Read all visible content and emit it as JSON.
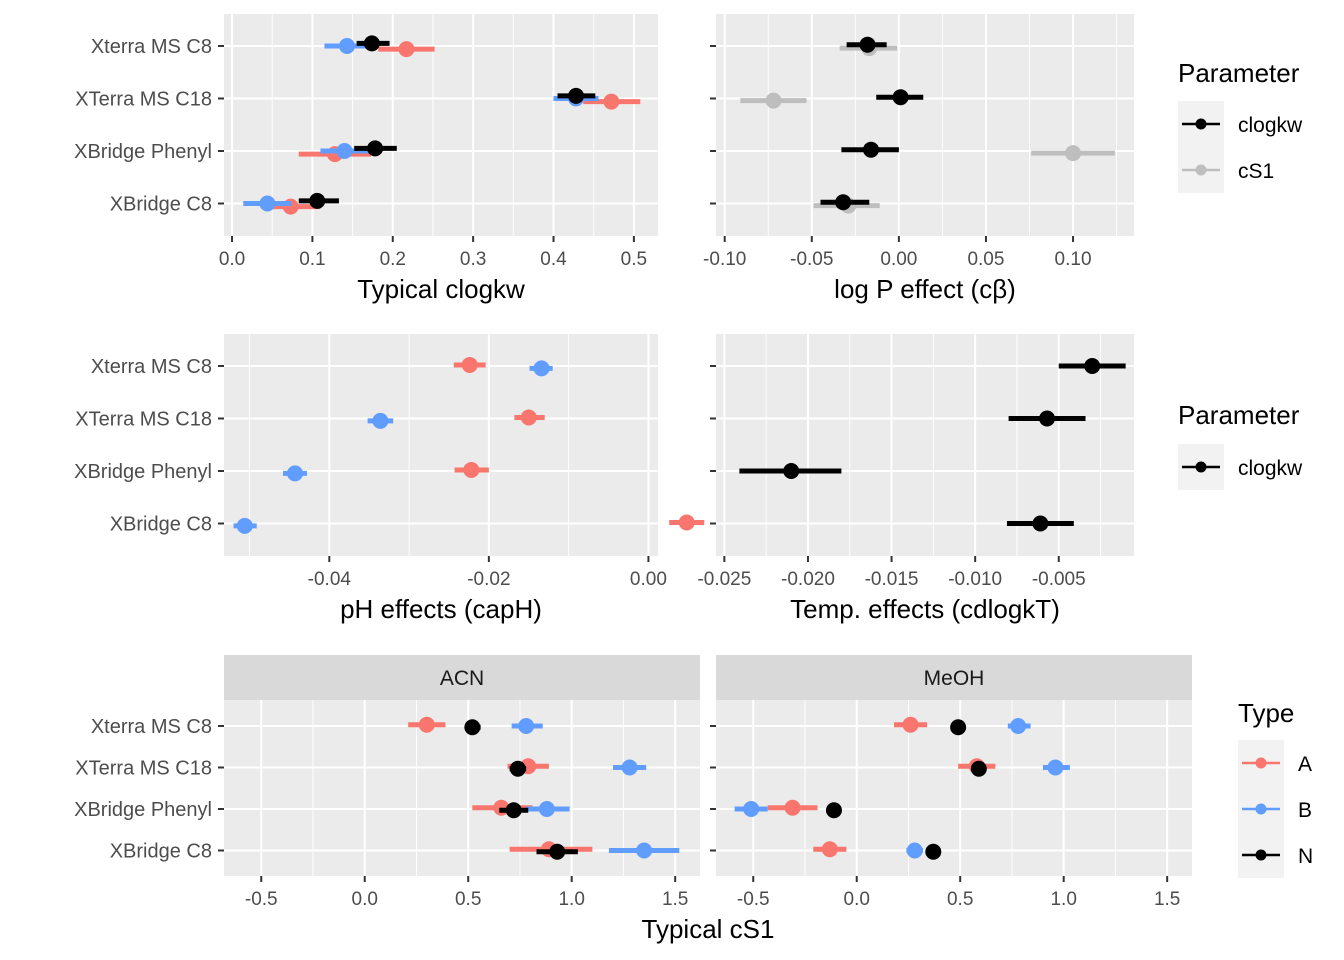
{
  "chart_data": [
    {
      "id": "p1",
      "type": "scatter",
      "subtype": "pointrange",
      "categories": [
        "Xterra MS C8",
        "XTerra MS C18",
        "XBridge Phenyl",
        "XBridge C8"
      ],
      "xlabel": "Typical clogkw",
      "xlim": [
        -0.01,
        0.53
      ],
      "xticks": [
        0.0,
        0.1,
        0.2,
        0.3,
        0.4,
        0.5
      ],
      "xtick_labels": [
        "0.0",
        "0.1",
        "0.2",
        "0.3",
        "0.4",
        "0.5"
      ],
      "series": [
        {
          "name": "A",
          "color": "#F8766D",
          "offset": 0.12,
          "points": [
            {
              "category": "Xterra MS C8",
              "x": 0.217,
              "lo": 0.182,
              "hi": 0.252
            },
            {
              "category": "XTerra MS C18",
              "x": 0.472,
              "lo": 0.437,
              "hi": 0.508
            },
            {
              "category": "XBridge Phenyl",
              "x": 0.128,
              "lo": 0.083,
              "hi": 0.173
            },
            {
              "category": "XBridge C8",
              "x": 0.073,
              "lo": 0.038,
              "hi": 0.11
            }
          ]
        },
        {
          "name": "B",
          "color": "#619CFF",
          "offset": 0.0,
          "points": [
            {
              "category": "Xterra MS C8",
              "x": 0.143,
              "lo": 0.115,
              "hi": 0.172
            },
            {
              "category": "XTerra MS C18",
              "x": 0.428,
              "lo": 0.4,
              "hi": 0.456
            },
            {
              "category": "XBridge Phenyl",
              "x": 0.14,
              "lo": 0.11,
              "hi": 0.17
            },
            {
              "category": "XBridge C8",
              "x": 0.044,
              "lo": 0.014,
              "hi": 0.074
            }
          ]
        },
        {
          "name": "N",
          "color": "#000000",
          "offset": -0.1,
          "points": [
            {
              "category": "Xterra MS C8",
              "x": 0.174,
              "lo": 0.155,
              "hi": 0.196
            },
            {
              "category": "XTerra MS C18",
              "x": 0.428,
              "lo": 0.405,
              "hi": 0.452
            },
            {
              "category": "XBridge Phenyl",
              "x": 0.178,
              "lo": 0.152,
              "hi": 0.205
            },
            {
              "category": "XBridge C8",
              "x": 0.106,
              "lo": 0.083,
              "hi": 0.133
            }
          ]
        }
      ]
    },
    {
      "id": "p2",
      "type": "scatter",
      "subtype": "pointrange",
      "categories": [
        "Xterra MS C8",
        "XTerra MS C18",
        "XBridge Phenyl",
        "XBridge C8"
      ],
      "xlabel": "log P effect (cβ)",
      "xlim": [
        -0.105,
        0.135
      ],
      "xticks": [
        -0.1,
        -0.05,
        0.0,
        0.05,
        0.1
      ],
      "xtick_labels": [
        "-0.10",
        "-0.05",
        "0.00",
        "0.05",
        "0.10"
      ],
      "series": [
        {
          "name": "cS1",
          "color": "#BEBEBE",
          "offset": 0.08,
          "points": [
            {
              "category": "Xterra MS C8",
              "x": -0.017,
              "lo": -0.034,
              "hi": -0.001
            },
            {
              "category": "XTerra MS C18",
              "x": -0.072,
              "lo": -0.091,
              "hi": -0.053
            },
            {
              "category": "XBridge Phenyl",
              "x": 0.1,
              "lo": 0.076,
              "hi": 0.124
            },
            {
              "category": "XBridge C8",
              "x": -0.029,
              "lo": -0.049,
              "hi": -0.011
            }
          ]
        },
        {
          "name": "clogkw",
          "color": "#000000",
          "offset": -0.05,
          "points": [
            {
              "category": "Xterra MS C8",
              "x": -0.018,
              "lo": -0.03,
              "hi": -0.007
            },
            {
              "category": "XTerra MS C18",
              "x": 0.001,
              "lo": -0.013,
              "hi": 0.014
            },
            {
              "category": "XBridge Phenyl",
              "x": -0.016,
              "lo": -0.033,
              "hi": 0.0
            },
            {
              "category": "XBridge C8",
              "x": -0.032,
              "lo": -0.045,
              "hi": -0.017
            }
          ]
        }
      ]
    },
    {
      "id": "p3",
      "type": "scatter",
      "subtype": "pointrange",
      "categories": [
        "Xterra MS C8",
        "XTerra MS C18",
        "XBridge Phenyl",
        "XBridge C8"
      ],
      "xlabel": "pH effects (capH)",
      "xlim": [
        -0.0532,
        0.0012
      ],
      "xticks": [
        -0.04,
        -0.02,
        0.0
      ],
      "xtick_labels": [
        "-0.04",
        "-0.02",
        "0.00"
      ],
      "series": [
        {
          "name": "A",
          "color": "#F8766D",
          "offset": -0.04,
          "points": [
            {
              "category": "Xterra MS C8",
              "x": -0.0224,
              "lo": -0.0244,
              "hi": -0.0204
            },
            {
              "category": "XTerra MS C18",
              "x": -0.015,
              "lo": -0.0168,
              "hi": -0.013
            },
            {
              "category": "XBridge Phenyl",
              "x": -0.0222,
              "lo": -0.0243,
              "hi": -0.02
            },
            {
              "category": "XBridge C8",
              "x": 0.0048,
              "lo": 0.0026,
              "hi": 0.007
            }
          ]
        },
        {
          "name": "B",
          "color": "#619CFF",
          "offset": 0.09,
          "points": [
            {
              "category": "Xterra MS C8",
              "x": -0.0134,
              "lo": -0.0149,
              "hi": -0.012
            },
            {
              "category": "XTerra MS C18",
              "x": -0.0336,
              "lo": -0.0352,
              "hi": -0.032
            },
            {
              "category": "XBridge Phenyl",
              "x": -0.0443,
              "lo": -0.0458,
              "hi": -0.0428
            },
            {
              "category": "XBridge C8",
              "x": -0.0506,
              "lo": -0.052,
              "hi": -0.0491
            }
          ]
        }
      ]
    },
    {
      "id": "p4",
      "type": "scatter",
      "subtype": "pointrange",
      "categories": [
        "Xterra MS C8",
        "XTerra MS C18",
        "XBridge Phenyl",
        "XBridge C8"
      ],
      "xlabel": "Temp. effects (cdlogkT)",
      "xlim": [
        -0.0255,
        -0.0005
      ],
      "xticks": [
        -0.025,
        -0.02,
        -0.015,
        -0.01,
        -0.005
      ],
      "xtick_labels": [
        "-0.025",
        "-0.020",
        "-0.015",
        "-0.010",
        "-0.005"
      ],
      "series": [
        {
          "name": "clogkw",
          "color": "#000000",
          "offset": 0.0,
          "points": [
            {
              "category": "Xterra MS C8",
              "x": -0.003,
              "lo": -0.005,
              "hi": -0.001
            },
            {
              "category": "XTerra MS C18",
              "x": -0.0057,
              "lo": -0.008,
              "hi": -0.0034
            },
            {
              "category": "XBridge Phenyl",
              "x": -0.021,
              "lo": -0.0241,
              "hi": -0.018
            },
            {
              "category": "XBridge C8",
              "x": -0.0061,
              "lo": -0.0081,
              "hi": -0.0041
            }
          ]
        }
      ]
    },
    {
      "id": "p5",
      "type": "scatter",
      "subtype": "pointrange",
      "facets": [
        "ACN",
        "MeOH"
      ],
      "categories": [
        "Xterra MS C8",
        "XTerra MS C18",
        "XBridge Phenyl",
        "XBridge C8"
      ],
      "xlabel": "Typical cS1",
      "xlim": [
        -0.68,
        1.62
      ],
      "xticks": [
        -0.5,
        0.0,
        0.5,
        1.0,
        1.5
      ],
      "xtick_labels": [
        "-0.5",
        "0.0",
        "0.5",
        "1.0",
        "1.5"
      ],
      "series": [
        {
          "name": "A",
          "color": "#F8766D",
          "offset": -0.06,
          "points": [
            {
              "facet": "ACN",
              "category": "Xterra MS C8",
              "x": 0.3,
              "lo": 0.21,
              "hi": 0.39
            },
            {
              "facet": "ACN",
              "category": "XTerra MS C18",
              "x": 0.79,
              "lo": 0.69,
              "hi": 0.89
            },
            {
              "facet": "ACN",
              "category": "XBridge Phenyl",
              "x": 0.66,
              "lo": 0.52,
              "hi": 0.81
            },
            {
              "facet": "ACN",
              "category": "XBridge C8",
              "x": 0.89,
              "lo": 0.7,
              "hi": 1.1
            },
            {
              "facet": "MeOH",
              "category": "Xterra MS C8",
              "x": 0.26,
              "lo": 0.18,
              "hi": 0.34
            },
            {
              "facet": "MeOH",
              "category": "XTerra MS C18",
              "x": 0.58,
              "lo": 0.49,
              "hi": 0.67
            },
            {
              "facet": "MeOH",
              "category": "XBridge Phenyl",
              "x": -0.31,
              "lo": -0.43,
              "hi": -0.19
            },
            {
              "facet": "MeOH",
              "category": "XBridge C8",
              "x": -0.13,
              "lo": -0.21,
              "hi": -0.05
            }
          ]
        },
        {
          "name": "B",
          "color": "#619CFF",
          "offset": 0.0,
          "points": [
            {
              "facet": "ACN",
              "category": "Xterra MS C8",
              "x": 0.78,
              "lo": 0.71,
              "hi": 0.86
            },
            {
              "facet": "ACN",
              "category": "XTerra MS C18",
              "x": 1.28,
              "lo": 1.2,
              "hi": 1.36
            },
            {
              "facet": "ACN",
              "category": "XBridge Phenyl",
              "x": 0.88,
              "lo": 0.78,
              "hi": 0.99
            },
            {
              "facet": "ACN",
              "category": "XBridge C8",
              "x": 1.35,
              "lo": 1.18,
              "hi": 1.52
            },
            {
              "facet": "MeOH",
              "category": "Xterra MS C8",
              "x": 0.78,
              "lo": 0.73,
              "hi": 0.84
            },
            {
              "facet": "MeOH",
              "category": "XTerra MS C18",
              "x": 0.96,
              "lo": 0.9,
              "hi": 1.03
            },
            {
              "facet": "MeOH",
              "category": "XBridge Phenyl",
              "x": -0.51,
              "lo": -0.59,
              "hi": -0.43
            },
            {
              "facet": "MeOH",
              "category": "XBridge C8",
              "x": 0.28,
              "lo": 0.24,
              "hi": 0.32
            }
          ]
        },
        {
          "name": "N",
          "color": "#000000",
          "offset": 0.06,
          "points": [
            {
              "facet": "ACN",
              "category": "Xterra MS C8",
              "x": 0.52,
              "lo": 0.49,
              "hi": 0.56
            },
            {
              "facet": "ACN",
              "category": "XTerra MS C18",
              "x": 0.74,
              "lo": 0.7,
              "hi": 0.78
            },
            {
              "facet": "ACN",
              "category": "XBridge Phenyl",
              "x": 0.72,
              "lo": 0.65,
              "hi": 0.79
            },
            {
              "facet": "ACN",
              "category": "XBridge C8",
              "x": 0.93,
              "lo": 0.83,
              "hi": 1.03
            },
            {
              "facet": "MeOH",
              "category": "Xterra MS C8",
              "x": 0.49,
              "lo": 0.47,
              "hi": 0.51
            },
            {
              "facet": "MeOH",
              "category": "XTerra MS C18",
              "x": 0.59,
              "lo": 0.56,
              "hi": 0.62
            },
            {
              "facet": "MeOH",
              "category": "XBridge Phenyl",
              "x": -0.11,
              "lo": -0.14,
              "hi": -0.08
            },
            {
              "facet": "MeOH",
              "category": "XBridge C8",
              "x": 0.37,
              "lo": 0.35,
              "hi": 0.39
            }
          ]
        }
      ]
    }
  ],
  "legends": [
    {
      "id": "leg-parameter-1",
      "title": "Parameter",
      "entries": [
        {
          "label": "clogkw",
          "color": "#000000"
        },
        {
          "label": "cS1",
          "color": "#BEBEBE"
        }
      ]
    },
    {
      "id": "leg-parameter-2",
      "title": "Parameter",
      "entries": [
        {
          "label": "clogkw",
          "color": "#000000"
        }
      ]
    },
    {
      "id": "leg-type",
      "title": "Type",
      "entries": [
        {
          "label": "A",
          "color": "#F8766D"
        },
        {
          "label": "B",
          "color": "#619CFF"
        },
        {
          "label": "N",
          "color": "#000000"
        }
      ]
    }
  ],
  "style": {
    "panel_background": "#EBEBEB",
    "grid_color": "#FFFFFF",
    "strip_background": "#D9D9D9",
    "tick_text_color": "#4D4D4D"
  }
}
